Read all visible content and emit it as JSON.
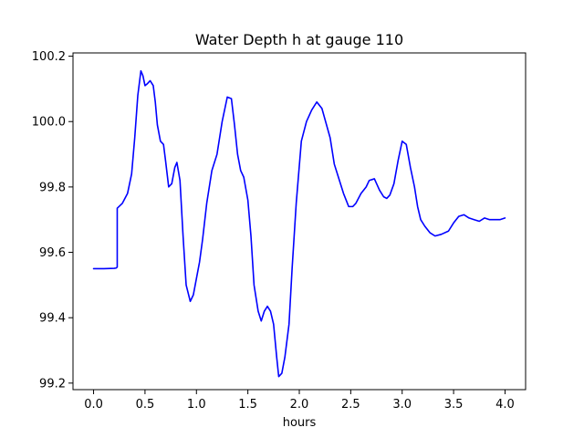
{
  "chart_data": {
    "type": "line",
    "title": "Water Depth h at gauge 110",
    "xlabel": "hours",
    "ylabel": "",
    "xlim": [
      -0.2,
      4.2
    ],
    "ylim": [
      99.18,
      100.21
    ],
    "xticks": [
      0.0,
      0.5,
      1.0,
      1.5,
      2.0,
      2.5,
      3.0,
      3.5,
      4.0
    ],
    "xtick_labels": [
      "0.0",
      "0.5",
      "1.0",
      "1.5",
      "2.0",
      "2.5",
      "3.0",
      "3.5",
      "4.0"
    ],
    "yticks": [
      99.2,
      99.4,
      99.6,
      99.8,
      100.0,
      100.2
    ],
    "ytick_labels": [
      "99.2",
      "99.4",
      "99.6",
      "99.8",
      "100.0",
      "100.2"
    ],
    "grid": false,
    "series": [
      {
        "color": "#0000ff",
        "x": [
          0.0,
          0.1,
          0.2,
          0.22,
          0.23,
          0.23,
          0.28,
          0.33,
          0.37,
          0.4,
          0.43,
          0.46,
          0.48,
          0.5,
          0.52,
          0.55,
          0.58,
          0.6,
          0.62,
          0.65,
          0.68,
          0.7,
          0.73,
          0.76,
          0.79,
          0.81,
          0.84,
          0.87,
          0.9,
          0.94,
          0.97,
          1.0,
          1.03,
          1.06,
          1.1,
          1.15,
          1.2,
          1.25,
          1.3,
          1.34,
          1.37,
          1.4,
          1.43,
          1.46,
          1.5,
          1.53,
          1.56,
          1.6,
          1.63,
          1.66,
          1.69,
          1.72,
          1.75,
          1.78,
          1.8,
          1.83,
          1.86,
          1.9,
          1.93,
          1.97,
          2.02,
          2.07,
          2.12,
          2.17,
          2.22,
          2.3,
          2.34,
          2.38,
          2.43,
          2.48,
          2.52,
          2.55,
          2.6,
          2.65,
          2.68,
          2.73,
          2.78,
          2.82,
          2.85,
          2.88,
          2.92,
          2.96,
          3.0,
          3.04,
          3.08,
          3.12,
          3.15,
          3.18,
          3.22,
          3.27,
          3.32,
          3.38,
          3.45,
          3.5,
          3.55,
          3.6,
          3.65,
          3.7,
          3.75,
          3.8,
          3.85,
          3.9,
          3.95,
          4.0
        ],
        "y": [
          99.55,
          99.55,
          99.551,
          99.552,
          99.555,
          99.735,
          99.75,
          99.78,
          99.84,
          99.95,
          100.08,
          100.155,
          100.14,
          100.11,
          100.115,
          100.125,
          100.11,
          100.06,
          99.99,
          99.94,
          99.93,
          99.88,
          99.8,
          99.81,
          99.86,
          99.875,
          99.82,
          99.65,
          99.5,
          99.45,
          99.47,
          99.52,
          99.57,
          99.64,
          99.75,
          99.85,
          99.9,
          100.0,
          100.075,
          100.07,
          99.99,
          99.9,
          99.85,
          99.83,
          99.76,
          99.65,
          99.5,
          99.42,
          99.39,
          99.42,
          99.435,
          99.42,
          99.38,
          99.28,
          99.22,
          99.23,
          99.28,
          99.38,
          99.55,
          99.75,
          99.94,
          100.0,
          100.035,
          100.06,
          100.04,
          99.95,
          99.87,
          99.83,
          99.78,
          99.74,
          99.74,
          99.75,
          99.78,
          99.8,
          99.82,
          99.825,
          99.79,
          99.77,
          99.765,
          99.775,
          99.81,
          99.88,
          99.94,
          99.93,
          99.86,
          99.8,
          99.74,
          99.7,
          99.68,
          99.66,
          99.65,
          99.655,
          99.665,
          99.69,
          99.71,
          99.715,
          99.705,
          99.7,
          99.695,
          99.705,
          99.7,
          99.7,
          99.7,
          99.705
        ]
      }
    ]
  }
}
